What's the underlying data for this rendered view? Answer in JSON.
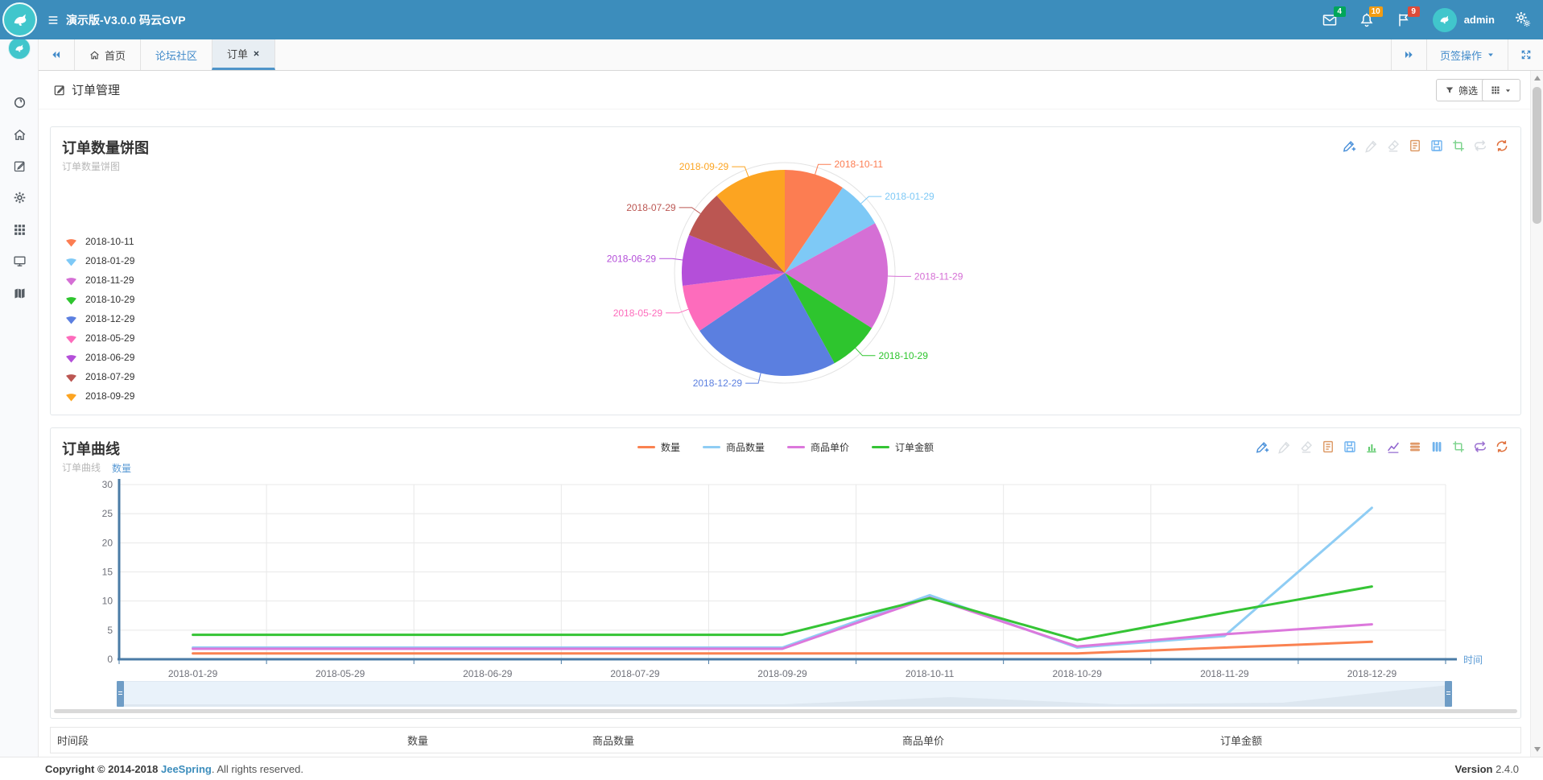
{
  "theme": {
    "navbar_bg": "#3c8dbc",
    "accent": "#428bca",
    "logo_teal": "#41c6cc",
    "badge_green": "#00a65a",
    "badge_orange": "#f39c12",
    "badge_red": "#dd4b39",
    "axis_blue": "#4a7ba6",
    "axis_name_blue": "#5b9bd5"
  },
  "navbar": {
    "brand": "演示版-V3.0.0 码云GVP",
    "mail_count": "4",
    "notif_count": "10",
    "flag_count": "9",
    "username": "admin"
  },
  "tabbar": {
    "home_tab": "首页",
    "forum_tab": "论坛社区",
    "order_tab": "订单",
    "tab_actions": "页签操作"
  },
  "page": {
    "title": "订单管理",
    "filter_button": "筛选"
  },
  "pie_panel": {
    "title": "订单数量饼图",
    "subtitle": "订单数量饼图",
    "tools": [
      {
        "icon": "pencil-plus",
        "color": "#4a90d9"
      },
      {
        "icon": "pencil",
        "color": "#d9dde1"
      },
      {
        "icon": "eraser",
        "color": "#d9dde1"
      },
      {
        "icon": "document",
        "color": "#dd9a66"
      },
      {
        "icon": "save",
        "color": "#6fb3f0"
      },
      {
        "icon": "crop",
        "color": "#7fd48f"
      },
      {
        "icon": "swap",
        "color": "#d9dde1"
      },
      {
        "icon": "refresh",
        "color": "#e0703c"
      }
    ]
  },
  "line_panel": {
    "title": "订单曲线",
    "subtitle": "订单曲线",
    "tools": [
      {
        "icon": "pencil-plus",
        "color": "#4a90d9"
      },
      {
        "icon": "pencil",
        "color": "#d9dde1"
      },
      {
        "icon": "eraser",
        "color": "#d9dde1"
      },
      {
        "icon": "document",
        "color": "#dd9a66"
      },
      {
        "icon": "save",
        "color": "#6fb3f0"
      },
      {
        "icon": "bar-chart",
        "color": "#5cc96a"
      },
      {
        "icon": "line-chart",
        "color": "#9065cf"
      },
      {
        "icon": "h-bars",
        "color": "#e09a6a"
      },
      {
        "icon": "v-bars",
        "color": "#71b3ec"
      },
      {
        "icon": "crop",
        "color": "#7fd48f"
      },
      {
        "icon": "swap",
        "color": "#9a6fd0"
      },
      {
        "icon": "refresh",
        "color": "#e0703c"
      }
    ]
  },
  "chart_data": [
    {
      "type": "pie",
      "title": "订单数量饼图",
      "legend_position": "left",
      "slices": [
        {
          "label": "2018-10-11",
          "value": 9.5,
          "color": "#fc7d52"
        },
        {
          "label": "2018-01-29",
          "value": 7.5,
          "color": "#7ec9f6"
        },
        {
          "label": "2018-11-29",
          "value": 17,
          "color": "#d56fd5"
        },
        {
          "label": "2018-10-29",
          "value": 8,
          "color": "#2ec52e"
        },
        {
          "label": "2018-12-29",
          "value": 23.5,
          "color": "#5b7fe0"
        },
        {
          "label": "2018-05-29",
          "value": 7.5,
          "color": "#fd6cbc"
        },
        {
          "label": "2018-06-29",
          "value": 8,
          "color": "#b44fd9"
        },
        {
          "label": "2018-07-29",
          "value": 7.5,
          "color": "#bb5652"
        },
        {
          "label": "2018-09-29",
          "value": 11.5,
          "color": "#fca421"
        }
      ]
    },
    {
      "type": "line",
      "title": "订单曲线",
      "x": [
        "2018-01-29",
        "2018-05-29",
        "2018-06-29",
        "2018-07-29",
        "2018-09-29",
        "2018-10-11",
        "2018-10-29",
        "2018-11-29",
        "2018-12-29"
      ],
      "series": [
        {
          "name": "数量",
          "color": "#fa8251",
          "values": [
            1,
            1,
            1,
            1,
            1,
            1,
            1,
            2,
            3
          ]
        },
        {
          "name": "商品数量",
          "color": "#8fcdf4",
          "values": [
            2,
            2,
            2,
            2,
            2,
            11,
            2,
            4,
            26
          ]
        },
        {
          "name": "商品单价",
          "color": "#dc78dc",
          "values": [
            1.8,
            1.8,
            1.8,
            1.8,
            1.8,
            10.6,
            2.2,
            4.3,
            6
          ]
        },
        {
          "name": "订单金额",
          "color": "#35c435",
          "values": [
            4.2,
            4.2,
            4.2,
            4.2,
            4.2,
            10.5,
            3.3,
            8,
            12.5
          ]
        }
      ],
      "ylabel": "数量",
      "xlabel": "时间",
      "ylim": [
        0,
        30
      ],
      "yticks": [
        0,
        5,
        10,
        15,
        20,
        25,
        30
      ],
      "legend_position": "top",
      "grid": true,
      "datazoom": true
    }
  ],
  "table": {
    "headers": [
      "时间段",
      "数量",
      "商品数量",
      "商品单价",
      "订单金额"
    ]
  },
  "footer": {
    "copyright": "Copyright © 2014-2018",
    "brand_link": "JeeSpring",
    "copyright_suffix": ". All rights reserved.",
    "version_label": "Version",
    "version": "2.4.0"
  }
}
